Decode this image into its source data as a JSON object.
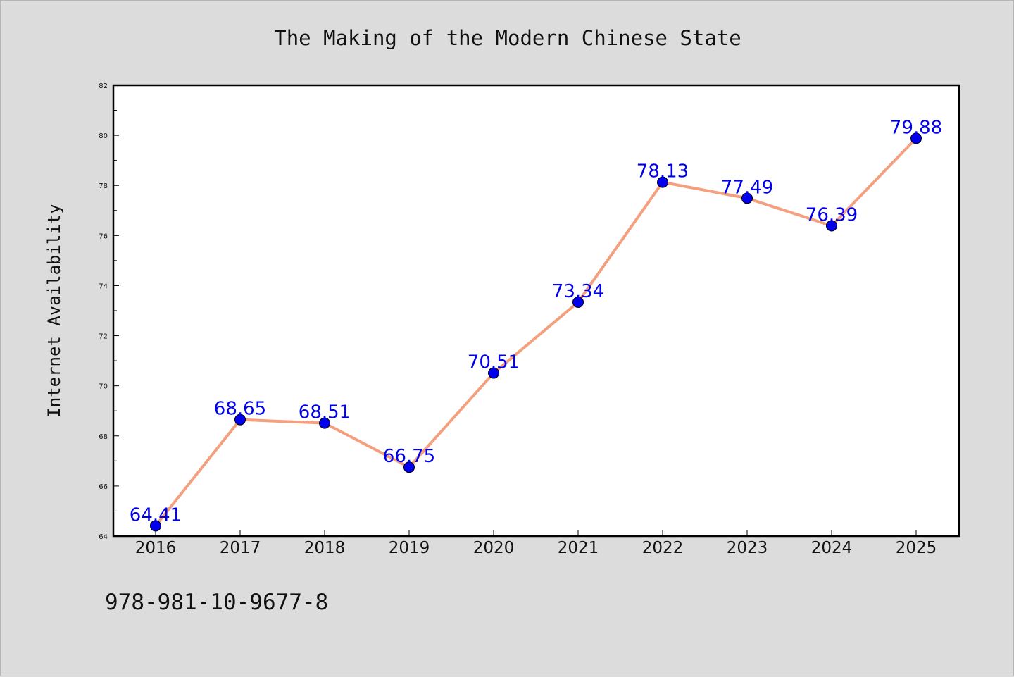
{
  "footnote": "978-981-10-9677-8",
  "colors": {
    "background": "#dcdcdc",
    "plot_background": "#ffffff",
    "line": "#f4a07f",
    "marker": "#0000ee",
    "data_label": "#0000ee"
  },
  "chart_data": {
    "type": "line",
    "title": "The Making of the Modern Chinese State",
    "xlabel": "",
    "ylabel": "Internet Availability",
    "categories": [
      "2016",
      "2017",
      "2018",
      "2019",
      "2020",
      "2021",
      "2022",
      "2023",
      "2024",
      "2025"
    ],
    "series": [
      {
        "values": [
          64.41,
          68.65,
          68.51,
          66.75,
          70.51,
          73.34,
          78.13,
          77.49,
          76.39,
          79.88
        ],
        "labels": [
          "64.41",
          "68.65",
          "68.51",
          "66.75",
          "70.51",
          "73.34",
          "78.13",
          "77.49",
          "76.39",
          "79.88"
        ]
      }
    ],
    "ylim": [
      64,
      82
    ],
    "yticks": [
      64,
      66,
      68,
      70,
      72,
      74,
      76,
      78,
      80,
      82
    ],
    "ytick_labels": [
      "64",
      "66",
      "68",
      "70",
      "72",
      "74",
      "76",
      "78",
      "80",
      "82"
    ],
    "grid": false,
    "legend": "none"
  }
}
